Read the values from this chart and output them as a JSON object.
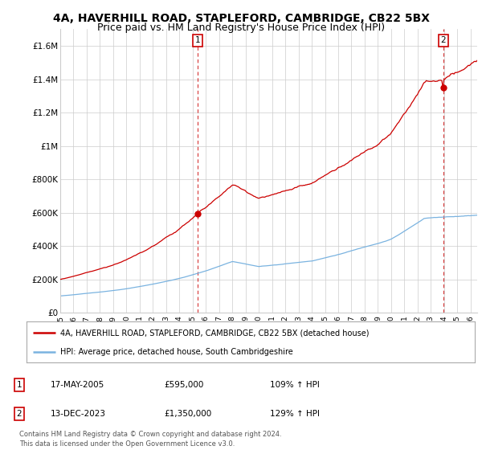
{
  "title": "4A, HAVERHILL ROAD, STAPLEFORD, CAMBRIDGE, CB22 5BX",
  "subtitle": "Price paid vs. HM Land Registry's House Price Index (HPI)",
  "ylim": [
    0,
    1700000
  ],
  "yticks": [
    0,
    200000,
    400000,
    600000,
    800000,
    1000000,
    1200000,
    1400000,
    1600000
  ],
  "ytick_labels": [
    "£0",
    "£200K",
    "£400K",
    "£600K",
    "£800K",
    "£1M",
    "£1.2M",
    "£1.4M",
    "£1.6M"
  ],
  "xlim_start": 1995.0,
  "xlim_end": 2026.5,
  "sale1_x": 2005.37,
  "sale1_y": 595000,
  "sale1_label": "1",
  "sale2_x": 2023.95,
  "sale2_y": 1350000,
  "sale2_label": "2",
  "hpi_color": "#7ab3e0",
  "sale_line_color": "#cc0000",
  "sale_dot_color": "#cc0000",
  "dashed_line_color": "#cc0000",
  "background_color": "#ffffff",
  "grid_color": "#cccccc",
  "legend_line1": "4A, HAVERHILL ROAD, STAPLEFORD, CAMBRIDGE, CB22 5BX (detached house)",
  "legend_line2": "HPI: Average price, detached house, South Cambridgeshire",
  "annotation1_label": "1",
  "annotation1_date": "17-MAY-2005",
  "annotation1_price": "£595,000",
  "annotation1_hpi": "109% ↑ HPI",
  "annotation2_label": "2",
  "annotation2_date": "13-DEC-2023",
  "annotation2_price": "£1,350,000",
  "annotation2_hpi": "129% ↑ HPI",
  "footer": "Contains HM Land Registry data © Crown copyright and database right 2024.\nThis data is licensed under the Open Government Licence v3.0.",
  "title_fontsize": 10,
  "subtitle_fontsize": 9
}
